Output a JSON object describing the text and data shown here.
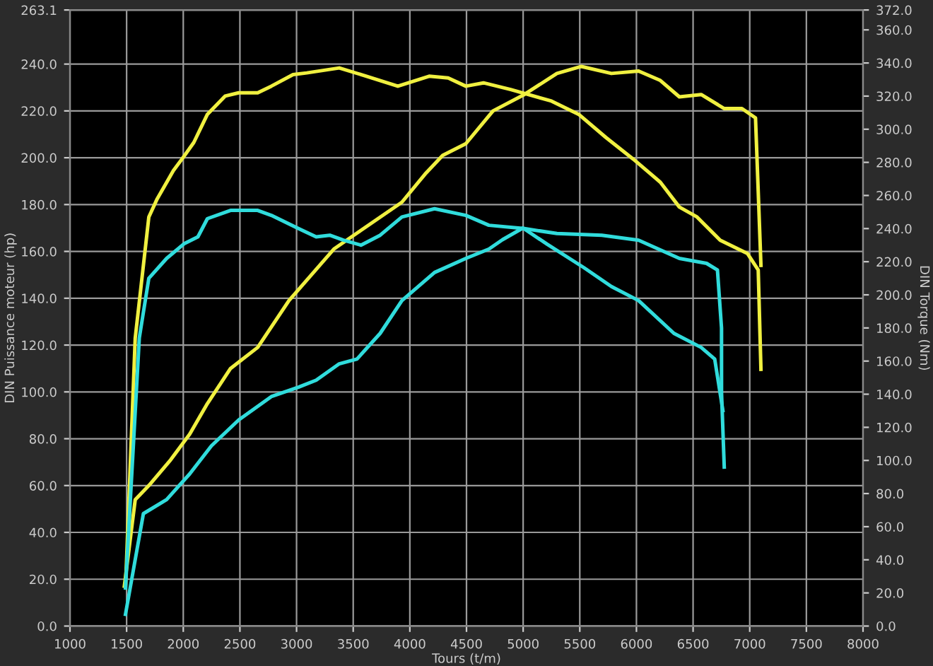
{
  "chart_data": {
    "type": "line",
    "xlabel": "Tours (t/m)",
    "ylabel": "DIN Puissance moteur (hp)",
    "y2label": "DIN Torque (Nm)",
    "xlim": [
      1000,
      8000
    ],
    "xticks": [
      1000,
      1500,
      2000,
      2500,
      3000,
      3500,
      4000,
      4500,
      5000,
      5500,
      6000,
      6500,
      7000,
      7500,
      8000
    ],
    "ylim": [
      0,
      263.1
    ],
    "yticks": [
      {
        "value": 0,
        "label": "0.0"
      },
      {
        "value": 20,
        "label": "20.0"
      },
      {
        "value": 40,
        "label": "40.0"
      },
      {
        "value": 60,
        "label": "60.0"
      },
      {
        "value": 80,
        "label": "80.0"
      },
      {
        "value": 100,
        "label": "100.0"
      },
      {
        "value": 120,
        "label": "120.0"
      },
      {
        "value": 140,
        "label": "140.0"
      },
      {
        "value": 160,
        "label": "160.0"
      },
      {
        "value": 180,
        "label": "180.0"
      },
      {
        "value": 200,
        "label": "200.0"
      },
      {
        "value": 220,
        "label": "220.0"
      },
      {
        "value": 240,
        "label": "240.0"
      },
      {
        "value": 263.1,
        "label": "263.1"
      }
    ],
    "y2lim": [
      0,
      372
    ],
    "y2ticks": [
      {
        "value": 0,
        "label": "0.0"
      },
      {
        "value": 20,
        "label": "20.0"
      },
      {
        "value": 40,
        "label": "40.0"
      },
      {
        "value": 60,
        "label": "60.0"
      },
      {
        "value": 80,
        "label": "80.0"
      },
      {
        "value": 100,
        "label": "100.0"
      },
      {
        "value": 120,
        "label": "120.0"
      },
      {
        "value": 140,
        "label": "140.0"
      },
      {
        "value": 160,
        "label": "160.0"
      },
      {
        "value": 180,
        "label": "180.0"
      },
      {
        "value": 200,
        "label": "200.0"
      },
      {
        "value": 220,
        "label": "220.0"
      },
      {
        "value": 240,
        "label": "240.0"
      },
      {
        "value": 260,
        "label": "260.0"
      },
      {
        "value": 280,
        "label": "280.0"
      },
      {
        "value": 300,
        "label": "300.0"
      },
      {
        "value": 320,
        "label": "320.0"
      },
      {
        "value": 340,
        "label": "340.0"
      },
      {
        "value": 360,
        "label": "360.0"
      },
      {
        "value": 372,
        "label": "372.0"
      }
    ],
    "grid": true,
    "marker": "none",
    "line_style": "solid",
    "series": [
      {
        "color": "#f0f040",
        "axis": "y2",
        "x": [
          1490,
          1576,
          1696,
          1770,
          1913,
          2010,
          2093,
          2213,
          2369,
          2489,
          2657,
          2777,
          2969,
          3089,
          3377,
          3617,
          3894,
          4170,
          4338,
          4494,
          4650,
          4890,
          5250,
          5490,
          5731,
          5971,
          6211,
          6379,
          6535,
          6739,
          6979,
          7075,
          7099
        ],
        "values": [
          23,
          174,
          247,
          258,
          275,
          284,
          292,
          309,
          320,
          322,
          322,
          326,
          333,
          334,
          337,
          332,
          326,
          332,
          331,
          326,
          328,
          324,
          317,
          309,
          295,
          282,
          268,
          253,
          247,
          233,
          225,
          215,
          155
        ]
      },
      {
        "color": "#f0f040",
        "x": [
          1480,
          1576,
          1696,
          1889,
          2057,
          2213,
          2417,
          2657,
          2933,
          3329,
          3569,
          3930,
          4134,
          4290,
          4494,
          4734,
          5010,
          5298,
          5514,
          5779,
          6019,
          6211,
          6379,
          6571,
          6775,
          6931,
          7051,
          7099
        ],
        "values": [
          17,
          54,
          60,
          71,
          82,
          95,
          110,
          119,
          139,
          161,
          169,
          181,
          193,
          201,
          206,
          220,
          227,
          236,
          239,
          236,
          237,
          233,
          226,
          227,
          221,
          221,
          217,
          154
        ]
      },
      {
        "color": "#30dcdc",
        "axis": "y2",
        "x": [
          1490,
          1612,
          1696,
          1853,
          2010,
          2129,
          2213,
          2417,
          2657,
          2777,
          3017,
          3173,
          3293,
          3413,
          3569,
          3738,
          3930,
          4218,
          4494,
          4698,
          5010,
          5298,
          5694,
          6019,
          6379,
          6619,
          6715,
          6751,
          6751,
          6775
        ],
        "values": [
          23,
          174,
          210,
          222,
          231,
          235,
          246,
          251,
          251,
          248,
          240,
          235,
          236,
          233,
          230,
          236,
          247,
          252,
          248,
          242,
          240,
          237,
          236,
          233,
          222,
          219,
          215,
          180,
          141,
          96
        ]
      },
      {
        "color": "#30dcdc",
        "x": [
          1490,
          1648,
          1853,
          2057,
          2249,
          2489,
          2777,
          3017,
          3173,
          3377,
          3533,
          3738,
          3930,
          4218,
          4494,
          4698,
          4818,
          4998,
          5214,
          5538,
          5779,
          6019,
          6331,
          6571,
          6691,
          6763
        ],
        "values": [
          5,
          48,
          54,
          65,
          77,
          88,
          98,
          102,
          105,
          112,
          114,
          125,
          139,
          151,
          157,
          161,
          165,
          170,
          163,
          153,
          145,
          139,
          125,
          119,
          114,
          92
        ]
      }
    ]
  }
}
